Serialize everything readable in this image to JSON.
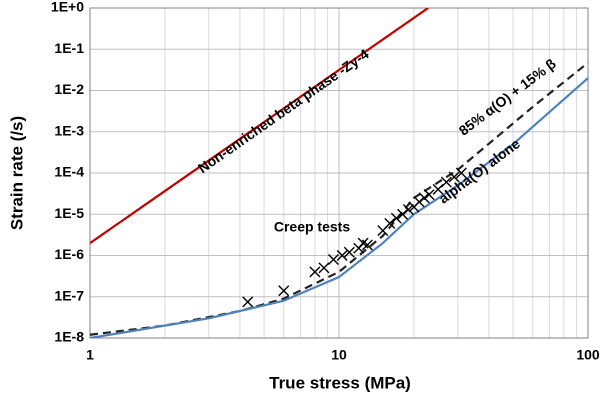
{
  "chart_data": {
    "type": "line",
    "xlabel": "True stress (MPa)",
    "ylabel": "Strain rate (/s)",
    "xscale": "log",
    "yscale": "log",
    "xlim": [
      1,
      100
    ],
    "ylim": [
      1e-08,
      1
    ],
    "xticks": [
      1,
      10,
      100
    ],
    "x_minor_ticks": [
      2,
      3,
      4,
      5,
      6,
      7,
      8,
      9,
      20,
      30,
      40,
      50,
      60,
      70,
      80,
      90
    ],
    "yticks": [
      {
        "value": 1e-08,
        "label": "1E-8"
      },
      {
        "value": 1e-07,
        "label": "1E-7"
      },
      {
        "value": 1e-06,
        "label": "1E-6"
      },
      {
        "value": 1e-05,
        "label": "1E-5"
      },
      {
        "value": 0.0001,
        "label": "1E-4"
      },
      {
        "value": 0.001,
        "label": "1E-3"
      },
      {
        "value": 0.01,
        "label": "1E-2"
      },
      {
        "value": 0.1,
        "label": "1E-1"
      },
      {
        "value": 1,
        "label": "1E+0"
      }
    ],
    "grid": true,
    "series": [
      {
        "name": "Non-enriched beta phase -Zy-4",
        "color": "#c00000",
        "dash": false,
        "x": [
          1,
          22.8
        ],
        "values": [
          2e-06,
          1
        ]
      },
      {
        "name": "85% α(O) + 15% β",
        "color": "#222222",
        "dash": true,
        "x": [
          1,
          2,
          4,
          6,
          10,
          15,
          20,
          30,
          60,
          100
        ],
        "values": [
          1.2e-08,
          2e-08,
          4.5e-08,
          9e-08,
          4e-07,
          3e-06,
          2.5e-05,
          0.00012,
          0.004,
          0.047
        ]
      },
      {
        "name": "alpha(O) alone",
        "color": "#4f81bd",
        "dash": false,
        "x": [
          1,
          3,
          6,
          10,
          15,
          20,
          30,
          50,
          100
        ],
        "values": [
          1e-08,
          3e-08,
          8e-08,
          3e-07,
          2e-06,
          1e-05,
          5e-05,
          0.0005,
          0.02
        ]
      },
      {
        "name": "Creep tests",
        "color": "#000000",
        "marker": "x",
        "x": [
          4.3,
          6,
          8,
          8.7,
          9.5,
          10.3,
          11,
          12,
          12.5,
          13,
          15,
          16,
          17,
          18,
          19,
          20,
          21,
          22,
          23,
          25,
          27,
          29,
          31
        ],
        "values": [
          7.5e-08,
          1.4e-07,
          4e-07,
          5e-07,
          8e-07,
          1e-06,
          1.2e-06,
          1.5e-06,
          2e-06,
          1.8e-06,
          4e-06,
          6e-06,
          8e-06,
          1e-05,
          1.3e-05,
          1.5e-05,
          2e-05,
          2.5e-05,
          3e-05,
          4e-05,
          6e-05,
          8e-05,
          0.0001
        ]
      }
    ]
  }
}
